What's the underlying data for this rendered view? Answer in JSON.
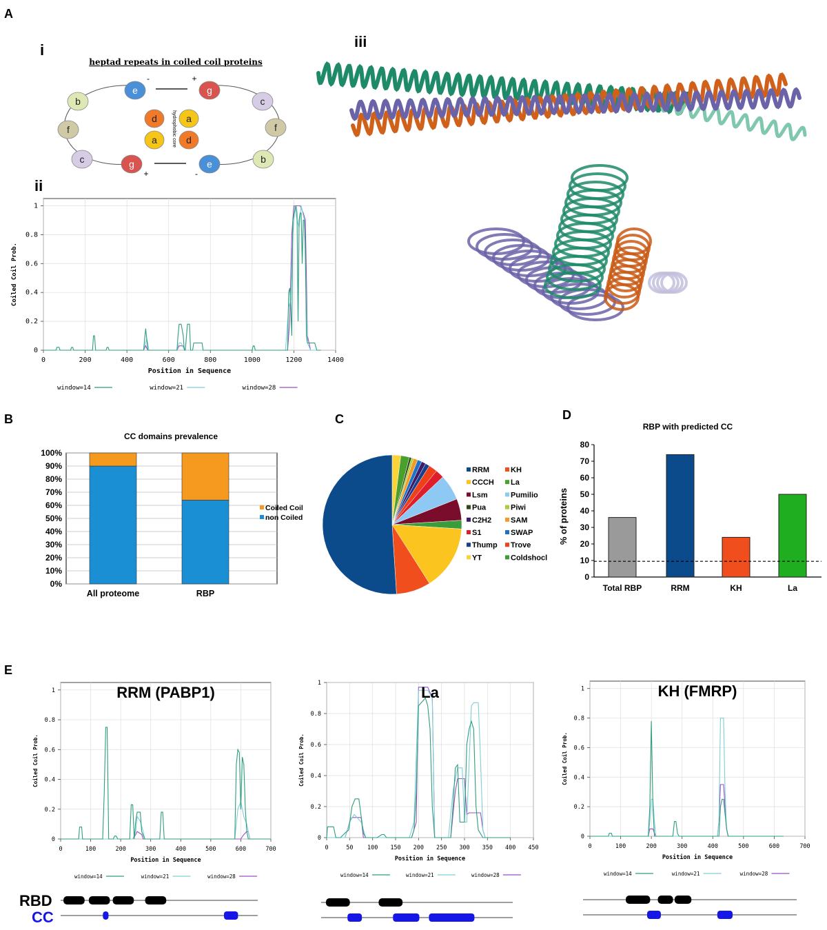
{
  "panel_labels": {
    "A": "A",
    "B": "B",
    "C": "C",
    "D": "D",
    "E": "E",
    "i": "i",
    "ii": "ii",
    "iii": "iii"
  },
  "heptad": {
    "title": "heptad repeats in coiled coil proteins",
    "core_label": "hydrophobic core",
    "signs": {
      "top_left": "-",
      "top_right": "+",
      "bottom_left": "+",
      "bottom_right": "-"
    },
    "left_ring": [
      "e",
      "b",
      "f",
      "c",
      "g"
    ],
    "right_ring": [
      "g",
      "c",
      "f",
      "b",
      "e"
    ],
    "core": [
      "d",
      "a",
      "a",
      "d"
    ],
    "colors": {
      "e": "#4a90d9",
      "g": "#d9534f",
      "b": "#dde8b5",
      "f": "#cfc9a6",
      "c": "#d6cce6",
      "d": "#f07a28",
      "a": "#f5c518"
    }
  },
  "chart_data": [
    {
      "id": "coils-main",
      "type": "line",
      "title": "",
      "xlabel": "Position in Sequence",
      "ylabel": "Coiled Coil Prob.",
      "xlim": [
        0,
        1400
      ],
      "ylim": [
        0,
        1.05
      ],
      "xticks": [
        "0",
        "200",
        "400",
        "600",
        "800",
        "1000",
        "1200",
        "1400"
      ],
      "yticks": [
        "0",
        "0.2",
        "0.4",
        "0.6",
        "0.8",
        "1"
      ],
      "legend": [
        "window=14",
        "window=21",
        "window=28"
      ],
      "series": [
        {
          "name": "window=14",
          "color": "#2e9c7e",
          "x": [
            0,
            60,
            65,
            75,
            80,
            130,
            135,
            140,
            145,
            235,
            240,
            245,
            250,
            300,
            305,
            310,
            315,
            480,
            485,
            490,
            495,
            500,
            640,
            645,
            650,
            660,
            670,
            675,
            680,
            690,
            700,
            705,
            715,
            720,
            760,
            765,
            770,
            775,
            1000,
            1005,
            1010,
            1015,
            1170,
            1175,
            1180,
            1185,
            1190,
            1195,
            1210,
            1215,
            1220,
            1225,
            1230,
            1235,
            1240,
            1245,
            1250,
            1255,
            1260,
            1265,
            1300,
            1310,
            1330
          ],
          "y": [
            0,
            0,
            0.02,
            0.02,
            0,
            0,
            0.02,
            0.02,
            0,
            0,
            0.1,
            0.1,
            0,
            0,
            0.02,
            0.02,
            0,
            0,
            0.08,
            0.15,
            0.08,
            0,
            0,
            0.1,
            0.18,
            0.18,
            0.1,
            0,
            0,
            0.18,
            0.18,
            0,
            0,
            0.05,
            0.05,
            0,
            0,
            0,
            0,
            0.03,
            0.03,
            0,
            0,
            0.4,
            0.43,
            0.3,
            0.1,
            0.9,
            1.0,
            0.95,
            0.2,
            0.9,
            0.95,
            0.95,
            0.6,
            0.9,
            0.9,
            0.7,
            0.1,
            0.05,
            0.05,
            0,
            0
          ]
        },
        {
          "name": "window=21",
          "color": "#7ecfd6",
          "x": [
            0,
            480,
            490,
            495,
            500,
            505,
            640,
            650,
            660,
            670,
            680,
            1160,
            1175,
            1185,
            1195,
            1205,
            1215,
            1225,
            1235,
            1250,
            1265,
            1280,
            1330
          ],
          "y": [
            0,
            0,
            0.05,
            0.08,
            0.05,
            0,
            0,
            0.05,
            0.05,
            0.02,
            0,
            0,
            0.3,
            0.35,
            0.8,
            1.0,
            0.9,
            0.85,
            1.0,
            0.9,
            0.05,
            0,
            0
          ]
        },
        {
          "name": "window=28",
          "color": "#9b4fc0",
          "x": [
            0,
            480,
            490,
            500,
            640,
            650,
            670,
            680,
            1170,
            1180,
            1190,
            1200,
            1230,
            1245,
            1255,
            1265,
            1280,
            1330
          ],
          "y": [
            0,
            0,
            0.03,
            0,
            0,
            0.03,
            0.03,
            0,
            0,
            0.2,
            0.8,
            1.0,
            1.0,
            0.95,
            0.9,
            0.1,
            0,
            0
          ]
        }
      ]
    },
    {
      "id": "cc-prevalence",
      "type": "bar",
      "title": "CC domains prevalence",
      "categories": [
        "All proteome",
        "RBP"
      ],
      "yticks": [
        "0%",
        "10%",
        "20%",
        "30%",
        "40%",
        "50%",
        "60%",
        "70%",
        "80%",
        "90%",
        "100%"
      ],
      "ylim": [
        0,
        100
      ],
      "series": [
        {
          "name": "non Coiled",
          "color": "#1a8fd4",
          "values": [
            90,
            64
          ]
        },
        {
          "name": "Coiled Coil",
          "color": "#f59a1e",
          "values": [
            10,
            36
          ]
        }
      ],
      "legend": [
        "Coiled Coil",
        "non Coiled"
      ]
    },
    {
      "id": "rbd-pie",
      "type": "pie",
      "title": "",
      "categories": [
        "RRM",
        "KH",
        "CCCH",
        "La",
        "Lsm",
        "Pumilio",
        "Pua",
        "Piwi",
        "C2H2",
        "SAM",
        "S1",
        "SWAP",
        "Thump",
        "Trove",
        "YT",
        "Coldshocl"
      ],
      "values": [
        51,
        8,
        15,
        2,
        5,
        6,
        0.5,
        0.5,
        1,
        1,
        2,
        1,
        1,
        2,
        2,
        2
      ],
      "colors": [
        "#0b4a8b",
        "#f04e1c",
        "#fbc41f",
        "#4aa02c",
        "#7b0d2c",
        "#8ec9f3",
        "#2b4a1a",
        "#a6cf3a",
        "#3d1d6b",
        "#f39a27",
        "#e01d2b",
        "#1b72c8",
        "#1a3f8a",
        "#f0401a",
        "#f8d43a",
        "#3b9c3a"
      ]
    },
    {
      "id": "rbp-cc",
      "type": "bar",
      "title": "RBP with predicted CC",
      "ylabel": "% of proteins",
      "categories": [
        "Total RBP",
        "RRM",
        "KH",
        "La"
      ],
      "values": [
        36,
        74,
        24,
        50
      ],
      "colors": [
        "#9a9a9a",
        "#0b4a8b",
        "#f04e1c",
        "#1fae1f"
      ],
      "ylim": [
        0,
        80
      ],
      "yticks": [
        "0",
        "10",
        "20",
        "30",
        "40",
        "50",
        "60",
        "70",
        "80"
      ],
      "reference_line": 9.5
    },
    {
      "id": "rrm-pabp1",
      "type": "line",
      "title": "RRM (PABP1)",
      "xlabel": "Position in Sequence",
      "ylabel": "Coiled Coil Prob.",
      "xlim": [
        0,
        700
      ],
      "ylim": [
        0,
        1.05
      ],
      "xticks": [
        "0",
        "100",
        "200",
        "300",
        "400",
        "500",
        "600",
        "700"
      ],
      "yticks": [
        "0",
        "0.2",
        "0.4",
        "0.6",
        "0.8",
        "1"
      ],
      "legend": [
        "window=14",
        "window=21",
        "window=28"
      ],
      "series": [
        {
          "name": "window=14",
          "color": "#2e9c7e",
          "x": [
            0,
            60,
            63,
            70,
            73,
            140,
            145,
            150,
            155,
            160,
            175,
            180,
            185,
            190,
            230,
            235,
            240,
            245,
            250,
            255,
            265,
            270,
            280,
            285,
            330,
            335,
            340,
            345,
            580,
            585,
            590,
            595,
            600,
            605,
            610,
            615,
            620,
            625,
            630,
            700
          ],
          "y": [
            0,
            0,
            0.08,
            0.08,
            0,
            0,
            0.3,
            0.75,
            0.75,
            0,
            0,
            0.02,
            0.02,
            0,
            0,
            0.23,
            0.23,
            0,
            0.12,
            0.18,
            0.18,
            0.05,
            0,
            0,
            0,
            0.18,
            0.18,
            0,
            0,
            0.5,
            0.6,
            0.58,
            0.2,
            0.55,
            0.5,
            0.2,
            0.05,
            0,
            0,
            0
          ]
        },
        {
          "name": "window=21",
          "color": "#7ecfd6",
          "x": [
            0,
            240,
            250,
            255,
            265,
            275,
            280,
            580,
            590,
            600,
            610,
            620,
            630,
            700
          ],
          "y": [
            0,
            0,
            0.05,
            0.15,
            0.12,
            0.05,
            0,
            0,
            0.2,
            0.25,
            0.15,
            0.1,
            0,
            0
          ]
        },
        {
          "name": "window=28",
          "color": "#9b4fc0",
          "x": [
            0,
            240,
            250,
            255,
            270,
            275,
            600,
            610,
            620,
            625,
            630,
            700
          ],
          "y": [
            0,
            0,
            0.03,
            0.05,
            0.03,
            0,
            0,
            0.03,
            0.05,
            0.05,
            0,
            0
          ]
        }
      ],
      "domain_track": {
        "rbd_label": "RBD",
        "cc_label": "CC",
        "length": 700,
        "rbd": [
          [
            10,
            85
          ],
          [
            100,
            175
          ],
          [
            185,
            260
          ],
          [
            300,
            375
          ]
        ],
        "cc": [
          [
            150,
            170
          ],
          [
            580,
            630
          ]
        ]
      }
    },
    {
      "id": "la",
      "type": "line",
      "title": "La",
      "xlabel": "Position in Sequence",
      "ylabel": "Coiled Coil Prob.",
      "xlim": [
        0,
        450
      ],
      "ylim": [
        0,
        1.0
      ],
      "xticks": [
        "0",
        "50",
        "100",
        "150",
        "200",
        "250",
        "300",
        "350",
        "400",
        "450"
      ],
      "yticks": [
        "0",
        "0.2",
        "0.4",
        "0.6",
        "0.8",
        "1"
      ],
      "legend": [
        "window=14",
        "window=21",
        "window=28"
      ],
      "series": [
        {
          "name": "window=14",
          "color": "#2e9c7e",
          "x": [
            0,
            2,
            15,
            20,
            30,
            40,
            48,
            55,
            62,
            70,
            80,
            85,
            110,
            120,
            125,
            130,
            185,
            190,
            195,
            200,
            215,
            220,
            225,
            230,
            235,
            270,
            275,
            280,
            285,
            290,
            300,
            305,
            310,
            315,
            320,
            325,
            330,
            340,
            345,
            400
          ],
          "y": [
            0,
            0.07,
            0.07,
            0,
            0,
            0.03,
            0.05,
            0.2,
            0.25,
            0.25,
            0.03,
            0,
            0,
            0.02,
            0.02,
            0,
            0,
            0.05,
            0.3,
            0.85,
            0.9,
            0.85,
            0.7,
            0.2,
            0,
            0,
            0.2,
            0.45,
            0.47,
            0.1,
            0.1,
            0.6,
            0.7,
            0.75,
            0.7,
            0.2,
            0.05,
            0,
            0,
            0
          ]
        },
        {
          "name": "window=21",
          "color": "#7ecfd6",
          "x": [
            0,
            40,
            50,
            60,
            75,
            85,
            180,
            190,
            200,
            210,
            220,
            230,
            235,
            265,
            275,
            285,
            295,
            300,
            305,
            315,
            320,
            330,
            335,
            340,
            345,
            400
          ],
          "y": [
            0,
            0,
            0.1,
            0.15,
            0.1,
            0,
            0,
            0.1,
            0.95,
            0.95,
            0.95,
            0.9,
            0,
            0,
            0.3,
            0.45,
            0.45,
            0.1,
            0.1,
            0.85,
            0.87,
            0.87,
            0.5,
            0.05,
            0,
            0
          ]
        },
        {
          "name": "window=28",
          "color": "#9b4fc0",
          "x": [
            0,
            40,
            50,
            55,
            75,
            80,
            185,
            195,
            200,
            220,
            230,
            235,
            270,
            280,
            285,
            300,
            305,
            310,
            335,
            340,
            345,
            400
          ],
          "y": [
            0,
            0,
            0.1,
            0.13,
            0.13,
            0,
            0,
            0.1,
            0.97,
            0.97,
            0.9,
            0,
            0,
            0.3,
            0.38,
            0.38,
            0.15,
            0.16,
            0.16,
            0.05,
            0,
            0
          ]
        }
      ],
      "domain_track": {
        "length": 400,
        "rbd": [
          [
            10,
            60
          ],
          [
            120,
            170
          ]
        ],
        "cc": [
          [
            55,
            85
          ],
          [
            150,
            205
          ],
          [
            225,
            320
          ]
        ]
      }
    },
    {
      "id": "kh-fmrp",
      "type": "line",
      "title": "KH (FMRP)",
      "xlabel": "Position in Sequence",
      "ylabel": "Coiled Coil Prob.",
      "xlim": [
        0,
        700
      ],
      "ylim": [
        0,
        1.05
      ],
      "xticks": [
        "0",
        "100",
        "200",
        "300",
        "400",
        "500",
        "600",
        "700"
      ],
      "yticks": [
        "0",
        "0.2",
        "0.4",
        "0.6",
        "0.8",
        "1"
      ],
      "legend": [
        "window=14",
        "window=21",
        "window=28"
      ],
      "series": [
        {
          "name": "window=14",
          "color": "#2e9c7e",
          "x": [
            0,
            60,
            63,
            70,
            73,
            190,
            195,
            200,
            205,
            210,
            270,
            275,
            280,
            285,
            290,
            420,
            425,
            430,
            435,
            440,
            445,
            450,
            630
          ],
          "y": [
            0,
            0,
            0.02,
            0.02,
            0,
            0,
            0.2,
            0.78,
            0.2,
            0,
            0,
            0.1,
            0.1,
            0.02,
            0,
            0,
            0.2,
            0.25,
            0.25,
            0.15,
            0.05,
            0,
            0
          ]
        },
        {
          "name": "window=21",
          "color": "#7ecfd6",
          "x": [
            0,
            190,
            195,
            200,
            205,
            210,
            215,
            415,
            420,
            425,
            430,
            435,
            440,
            445,
            450,
            630
          ],
          "y": [
            0,
            0,
            0.1,
            0.25,
            0.25,
            0.1,
            0,
            0,
            0.1,
            0.8,
            0.8,
            0.8,
            0.3,
            0.05,
            0,
            0
          ]
        },
        {
          "name": "window=28",
          "color": "#9b4fc0",
          "x": [
            0,
            190,
            195,
            205,
            210,
            215,
            415,
            420,
            425,
            435,
            440,
            445,
            450,
            630
          ],
          "y": [
            0,
            0,
            0.05,
            0.05,
            0.02,
            0,
            0,
            0.1,
            0.35,
            0.35,
            0.2,
            0.05,
            0,
            0
          ]
        }
      ],
      "domain_track": {
        "length": 700,
        "rbd": [
          [
            140,
            220
          ],
          [
            245,
            295
          ],
          [
            300,
            355
          ]
        ],
        "cc": [
          [
            210,
            255
          ],
          [
            440,
            490
          ]
        ]
      }
    }
  ]
}
